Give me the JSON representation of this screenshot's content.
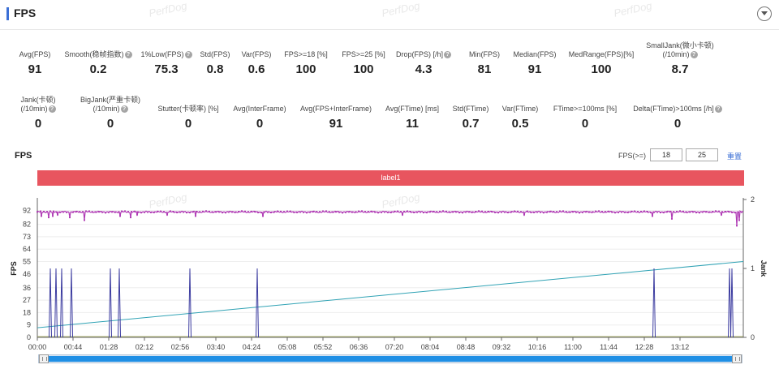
{
  "header": {
    "title": "FPS",
    "watermark": "PerfDog"
  },
  "metrics_row1": [
    {
      "label": "Avg(FPS)",
      "value": "91",
      "help": false
    },
    {
      "label": "Smooth(稳帧指数)",
      "value": "0.2",
      "help": true
    },
    {
      "label": "1%Low(FPS)",
      "value": "75.3",
      "help": true
    },
    {
      "label": "Std(FPS)",
      "value": "0.8",
      "help": false
    },
    {
      "label": "Var(FPS)",
      "value": "0.6",
      "help": false
    },
    {
      "label": "FPS>=18 [%]",
      "value": "100",
      "help": false
    },
    {
      "label": "FPS>=25 [%]",
      "value": "100",
      "help": false
    },
    {
      "label": "Drop(FPS) [/h]",
      "value": "4.3",
      "help": true
    },
    {
      "label": "Min(FPS)",
      "value": "81",
      "help": false
    },
    {
      "label": "Median(FPS)",
      "value": "91",
      "help": false
    },
    {
      "label": "MedRange(FPS)[%]",
      "value": "100",
      "help": false
    },
    {
      "label": "SmallJank(微小卡顿)",
      "label2": "(/10min)",
      "value": "8.7",
      "help": true
    }
  ],
  "metrics_row2": [
    {
      "label": "Jank(卡顿)",
      "label2": "(/10min)",
      "value": "0",
      "help": true
    },
    {
      "label": "BigJank(严重卡顿)",
      "label2": "(/10min)",
      "value": "0",
      "help": true
    },
    {
      "label": "Stutter(卡顿率) [%]",
      "value": "0",
      "help": false
    },
    {
      "label": "Avg(InterFrame)",
      "value": "0",
      "help": false
    },
    {
      "label": "Avg(FPS+InterFrame)",
      "value": "91",
      "help": false
    },
    {
      "label": "Avg(FTime) [ms]",
      "value": "11",
      "help": false
    },
    {
      "label": "Std(FTime)",
      "value": "0.7",
      "help": false
    },
    {
      "label": "Var(FTime)",
      "value": "0.5",
      "help": false
    },
    {
      "label": "FTime>=100ms [%]",
      "value": "0",
      "help": false
    },
    {
      "label": "Delta(FTime)>100ms [/h]",
      "value": "0",
      "help": true
    }
  ],
  "chart_header": {
    "title": "FPS",
    "threshold_label": "FPS(>=)",
    "threshold1": "18",
    "threshold2": "25",
    "reset_label": "重置"
  },
  "chart_data": {
    "type": "line",
    "band_label": "label1",
    "ylabel": "FPS",
    "y2label": "Jank",
    "yticks": [
      0,
      9,
      18,
      27,
      36,
      46,
      55,
      64,
      73,
      82,
      92
    ],
    "ylim": [
      0,
      100
    ],
    "y2ticks": [
      0,
      1,
      2
    ],
    "y2lim": [
      0,
      2
    ],
    "xticks": [
      "00:00",
      "00:44",
      "01:28",
      "02:12",
      "02:56",
      "03:40",
      "04:24",
      "05:08",
      "05:52",
      "06:36",
      "07:20",
      "08:04",
      "08:48",
      "09:32",
      "10:16",
      "11:00",
      "11:44",
      "12:28",
      "13:12"
    ],
    "xlim_seconds": [
      0,
      870
    ],
    "fps_baseline": 91,
    "fps_dips": [
      {
        "t": 5,
        "fps": 88
      },
      {
        "t": 14,
        "fps": 87
      },
      {
        "t": 19,
        "fps": 88
      },
      {
        "t": 25,
        "fps": 89
      },
      {
        "t": 40,
        "fps": 87
      },
      {
        "t": 58,
        "fps": 85
      },
      {
        "t": 102,
        "fps": 88
      },
      {
        "t": 115,
        "fps": 87
      },
      {
        "t": 123,
        "fps": 89
      },
      {
        "t": 160,
        "fps": 89
      },
      {
        "t": 195,
        "fps": 88
      },
      {
        "t": 278,
        "fps": 88
      },
      {
        "t": 450,
        "fps": 89
      },
      {
        "t": 600,
        "fps": 89
      },
      {
        "t": 758,
        "fps": 88
      },
      {
        "t": 782,
        "fps": 86
      },
      {
        "t": 843,
        "fps": 89
      },
      {
        "t": 862,
        "fps": 81
      },
      {
        "t": 865,
        "fps": 85
      }
    ],
    "jank_spikes_seconds": [
      16,
      23,
      30,
      42,
      90,
      101,
      188,
      271,
      760,
      853,
      856
    ],
    "trend_line": {
      "start": 7,
      "end": 55
    },
    "colors": {
      "fps": "#b03cb5",
      "jank": "#3c3ca0",
      "trend": "#31a3b5",
      "band": "#e8555f",
      "grid": "#eeeeee"
    }
  }
}
